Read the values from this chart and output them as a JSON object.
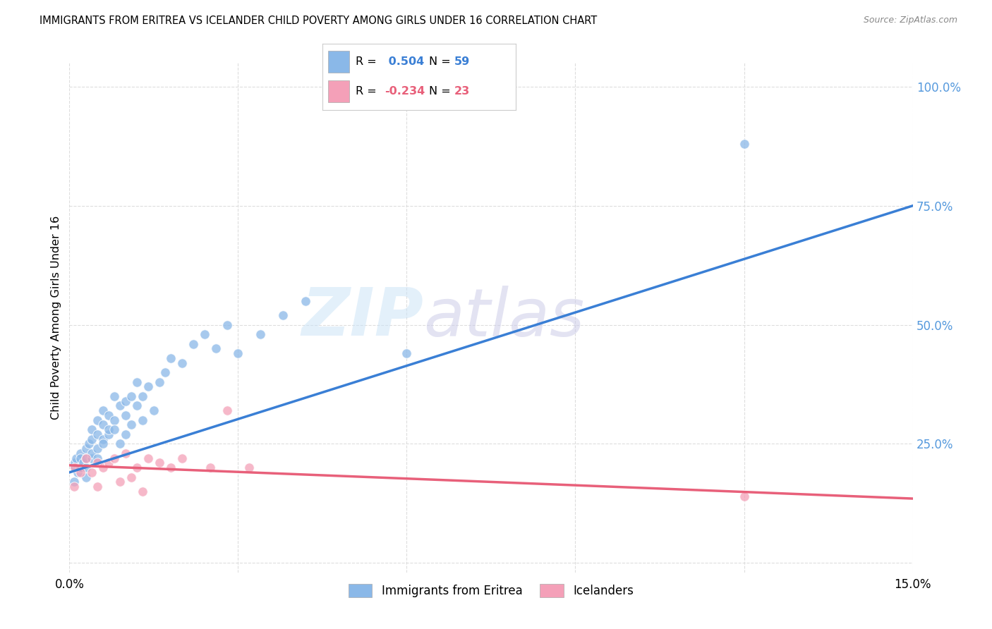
{
  "title": "IMMIGRANTS FROM ERITREA VS ICELANDER CHILD POVERTY AMONG GIRLS UNDER 16 CORRELATION CHART",
  "source": "Source: ZipAtlas.com",
  "ylabel": "Child Poverty Among Girls Under 16",
  "xlim": [
    0.0,
    0.15
  ],
  "ylim": [
    -0.02,
    1.05
  ],
  "yticks_right": [
    0.0,
    0.25,
    0.5,
    0.75,
    1.0
  ],
  "yticklabels_right": [
    "",
    "25.0%",
    "50.0%",
    "75.0%",
    "100.0%"
  ],
  "background_color": "#ffffff",
  "grid_color": "#dddddd",
  "blue_color": "#8ab8e8",
  "pink_color": "#f4a0b8",
  "blue_line_color": "#3a7fd5",
  "pink_line_color": "#e8607a",
  "right_axis_color": "#5599dd",
  "legend_R1": "0.504",
  "legend_N1": "59",
  "legend_R2": "-0.234",
  "legend_N2": "23",
  "legend_label1": "Immigrants from Eritrea",
  "legend_label2": "Icelanders",
  "blue_line_x0": 0.0,
  "blue_line_y0": 0.19,
  "blue_line_x1": 0.15,
  "blue_line_y1": 0.75,
  "pink_line_x0": 0.0,
  "pink_line_y0": 0.205,
  "pink_line_x1": 0.15,
  "pink_line_y1": 0.135,
  "eritrea_x": [
    0.0008,
    0.001,
    0.001,
    0.0012,
    0.0015,
    0.002,
    0.002,
    0.002,
    0.0025,
    0.003,
    0.003,
    0.003,
    0.003,
    0.0035,
    0.004,
    0.004,
    0.004,
    0.004,
    0.005,
    0.005,
    0.005,
    0.005,
    0.006,
    0.006,
    0.006,
    0.006,
    0.007,
    0.007,
    0.007,
    0.008,
    0.008,
    0.008,
    0.009,
    0.009,
    0.01,
    0.01,
    0.01,
    0.011,
    0.011,
    0.012,
    0.012,
    0.013,
    0.013,
    0.014,
    0.015,
    0.016,
    0.017,
    0.018,
    0.02,
    0.022,
    0.024,
    0.026,
    0.028,
    0.03,
    0.034,
    0.038,
    0.042,
    0.06,
    0.12
  ],
  "eritrea_y": [
    0.17,
    0.2,
    0.21,
    0.22,
    0.19,
    0.23,
    0.2,
    0.22,
    0.21,
    0.18,
    0.2,
    0.24,
    0.22,
    0.25,
    0.22,
    0.26,
    0.28,
    0.23,
    0.24,
    0.27,
    0.3,
    0.22,
    0.26,
    0.29,
    0.32,
    0.25,
    0.27,
    0.31,
    0.28,
    0.3,
    0.35,
    0.28,
    0.33,
    0.25,
    0.31,
    0.34,
    0.27,
    0.35,
    0.29,
    0.33,
    0.38,
    0.35,
    0.3,
    0.37,
    0.32,
    0.38,
    0.4,
    0.43,
    0.42,
    0.46,
    0.48,
    0.45,
    0.5,
    0.44,
    0.48,
    0.52,
    0.55,
    0.44,
    0.88
  ],
  "iceland_x": [
    0.0008,
    0.001,
    0.002,
    0.003,
    0.004,
    0.005,
    0.005,
    0.006,
    0.007,
    0.008,
    0.009,
    0.01,
    0.011,
    0.012,
    0.013,
    0.014,
    0.016,
    0.018,
    0.02,
    0.025,
    0.028,
    0.032,
    0.12
  ],
  "iceland_y": [
    0.16,
    0.2,
    0.19,
    0.22,
    0.19,
    0.21,
    0.16,
    0.2,
    0.21,
    0.22,
    0.17,
    0.23,
    0.18,
    0.2,
    0.15,
    0.22,
    0.21,
    0.2,
    0.22,
    0.2,
    0.32,
    0.2,
    0.14
  ]
}
